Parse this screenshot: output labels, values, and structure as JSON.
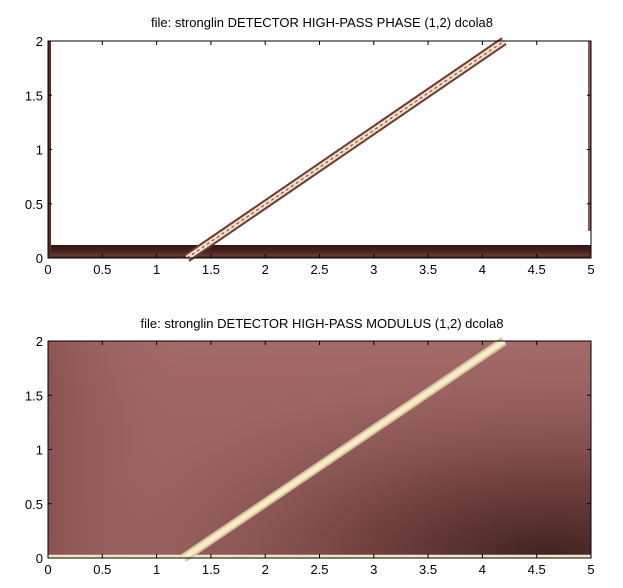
{
  "chart_data": [
    {
      "type": "heatmap",
      "title": "file:  stronglin   DETECTOR   HIGH-PASS PHASE (1,2)  dcola8",
      "xlabel": "",
      "ylabel": "",
      "xlim": [
        0,
        5
      ],
      "ylim": [
        0,
        2
      ],
      "xticks": [
        "0",
        "0.5",
        "1",
        "1.5",
        "2",
        "2.5",
        "3",
        "3.5",
        "4",
        "4.5",
        "5"
      ],
      "yticks": [
        "0",
        "0.5",
        "1",
        "1.5",
        "2"
      ],
      "features": {
        "diagonal_ridge": {
          "from": [
            1.28,
            0
          ],
          "to": [
            4.2,
            2
          ]
        },
        "low_band_ymax": 0.12
      },
      "colors": {
        "background": "#ffffff",
        "band_dark": "#2e1614",
        "ridge_light": "#f0e0c8",
        "ridge_dark": "#6e3a34"
      }
    },
    {
      "type": "heatmap",
      "title": "file:  stronglin   DETECTOR   HIGH-PASS MODULUS (1,2)  dcola8",
      "xlabel": "",
      "ylabel": "",
      "xlim": [
        0,
        5
      ],
      "ylim": [
        0,
        2
      ],
      "xticks": [
        "0",
        "0.5",
        "1",
        "1.5",
        "2",
        "2.5",
        "3",
        "3.5",
        "4",
        "4.5",
        "5"
      ],
      "yticks": [
        "0",
        "0.5",
        "1",
        "1.5",
        "2"
      ],
      "features": {
        "diagonal_ridge": {
          "from": [
            1.25,
            0
          ],
          "to": [
            4.2,
            2
          ]
        },
        "bottom_bright_band_ymax": 0.03
      },
      "colors": {
        "field": "#9c6462",
        "dark_region": "#3a1e1c",
        "ridge": "#f4e8c0"
      }
    }
  ]
}
